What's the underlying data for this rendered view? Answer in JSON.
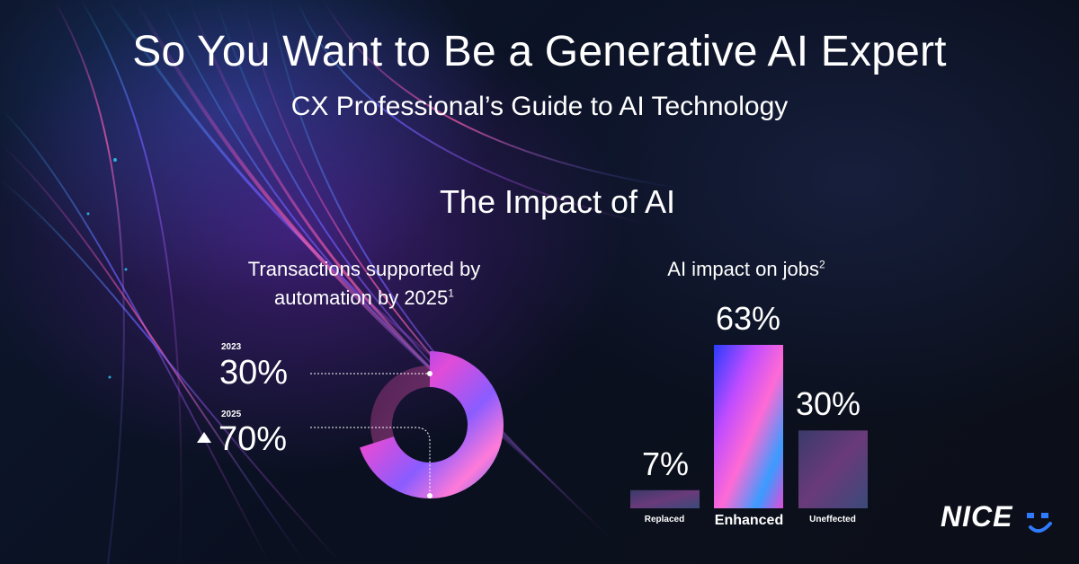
{
  "title": "So You Want to Be a Generative AI Expert",
  "subtitle": "CX Professional’s Guide to AI Technology",
  "section_title": "The Impact of AI",
  "left_caption": {
    "line1": "Transactions supported by",
    "line2": "automation by 2025",
    "footnote": "1"
  },
  "right_caption": {
    "text": "AI impact on jobs",
    "footnote": "2"
  },
  "logo": {
    "text": "NICE"
  },
  "colors": {
    "accent_magenta": "#e04cd8",
    "accent_blue": "#3a6cff",
    "accent_cyan": "#2bd0ff",
    "logo_blue": "#2f7bff"
  },
  "chart_data": [
    {
      "type": "pie",
      "title": "Transactions supported by automation by 2025",
      "series": [
        {
          "label": "2023",
          "display": "30%",
          "value": 30
        },
        {
          "label": "2025",
          "display": "70%",
          "value": 70,
          "trend": "up"
        }
      ]
    },
    {
      "type": "bar",
      "title": "AI impact on jobs",
      "categories": [
        "Replaced",
        "Enhanced",
        "Uneffected"
      ],
      "values": [
        7,
        63,
        30
      ],
      "value_labels": [
        "7%",
        "63%",
        "30%"
      ],
      "ylim": [
        0,
        63
      ]
    }
  ]
}
